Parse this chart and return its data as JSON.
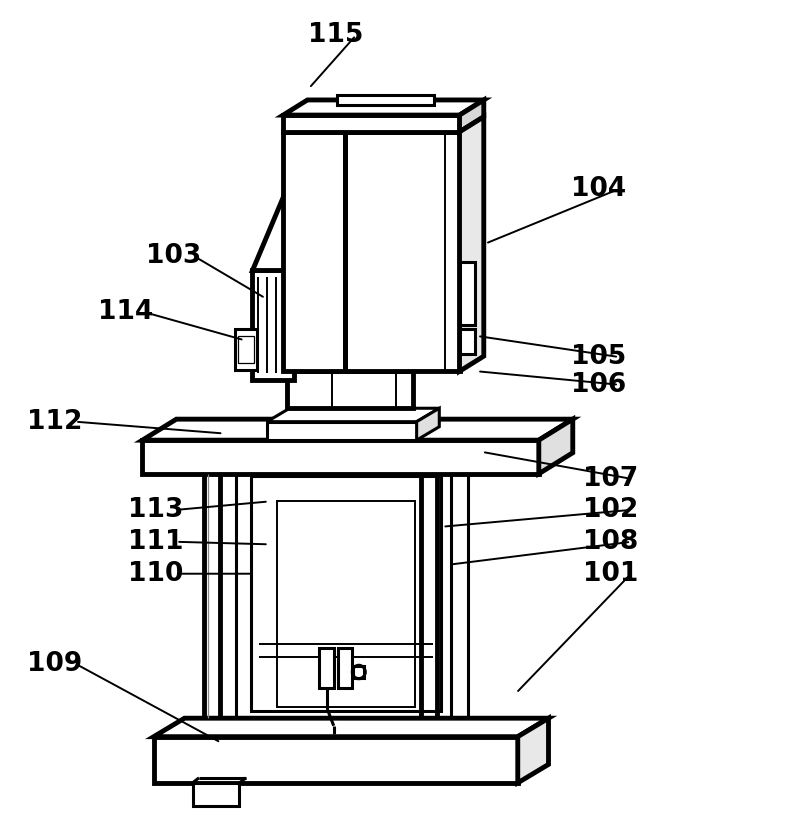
{
  "bg_color": "#ffffff",
  "lc": "#000000",
  "lw_thick": 3.5,
  "lw_med": 2.2,
  "lw_thin": 1.4,
  "lw_hair": 0.9,
  "label_fontsize": 19,
  "label_fontweight": "bold",
  "leaders": [
    [
      "115",
      [
        0.415,
        0.958
      ],
      [
        0.382,
        0.895
      ]
    ],
    [
      "104",
      [
        0.74,
        0.775
      ],
      [
        0.6,
        0.71
      ]
    ],
    [
      "103",
      [
        0.215,
        0.695
      ],
      [
        0.328,
        0.645
      ]
    ],
    [
      "114",
      [
        0.155,
        0.628
      ],
      [
        0.302,
        0.595
      ]
    ],
    [
      "105",
      [
        0.74,
        0.575
      ],
      [
        0.59,
        0.6
      ]
    ],
    [
      "106",
      [
        0.74,
        0.542
      ],
      [
        0.59,
        0.558
      ]
    ],
    [
      "112",
      [
        0.068,
        0.498
      ],
      [
        0.276,
        0.484
      ]
    ],
    [
      "107",
      [
        0.755,
        0.43
      ],
      [
        0.596,
        0.462
      ]
    ],
    [
      "113",
      [
        0.193,
        0.393
      ],
      [
        0.332,
        0.403
      ]
    ],
    [
      "102",
      [
        0.755,
        0.393
      ],
      [
        0.547,
        0.373
      ]
    ],
    [
      "111",
      [
        0.193,
        0.355
      ],
      [
        0.332,
        0.352
      ]
    ],
    [
      "108",
      [
        0.755,
        0.355
      ],
      [
        0.557,
        0.328
      ]
    ],
    [
      "110",
      [
        0.193,
        0.317
      ],
      [
        0.313,
        0.317
      ]
    ],
    [
      "101",
      [
        0.755,
        0.317
      ],
      [
        0.638,
        0.175
      ]
    ],
    [
      "109",
      [
        0.068,
        0.21
      ],
      [
        0.273,
        0.116
      ]
    ]
  ]
}
